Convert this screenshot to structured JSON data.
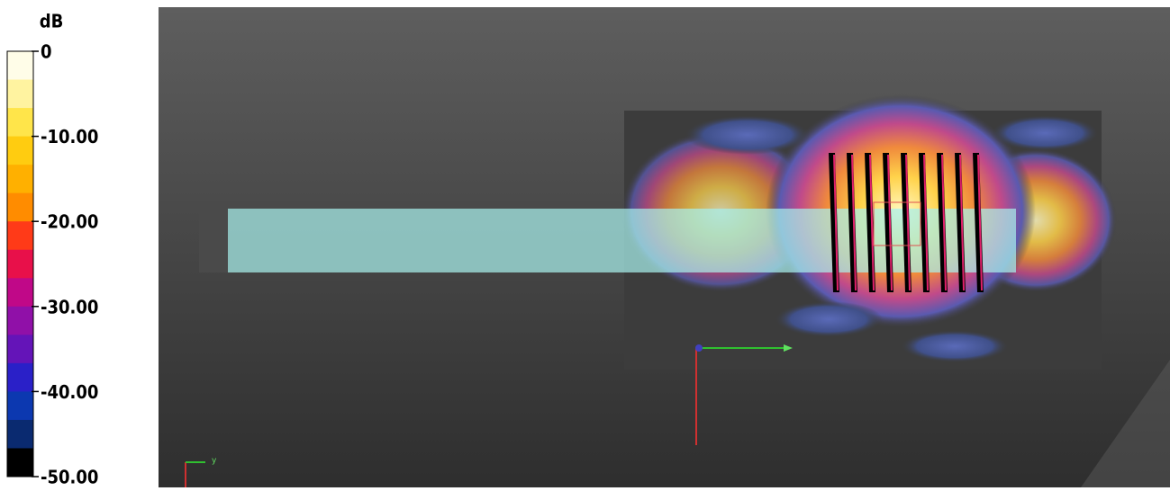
{
  "colorbar": {
    "unit": "dB",
    "range": [
      -50,
      0
    ],
    "ticks": [
      0,
      {
        "value": -10,
        "label": "-10.00"
      },
      {
        "value": -20,
        "label": "-20.00"
      },
      {
        "value": -30,
        "label": "-30.00"
      },
      {
        "value": -40,
        "label": "-40.00"
      },
      {
        "value": -50,
        "label": "-50.00"
      }
    ],
    "colors": [
      "#fffde8",
      "#fff3a0",
      "#ffe54a",
      "#ffcc10",
      "#ffb000",
      "#ff8c00",
      "#ff3a18",
      "#e8104a",
      "#c00888",
      "#9010a8",
      "#6414b8",
      "#2a20c8",
      "#0c38b0",
      "#0a2a70",
      "#000000"
    ]
  },
  "viewport": {
    "triad_label": "y"
  }
}
